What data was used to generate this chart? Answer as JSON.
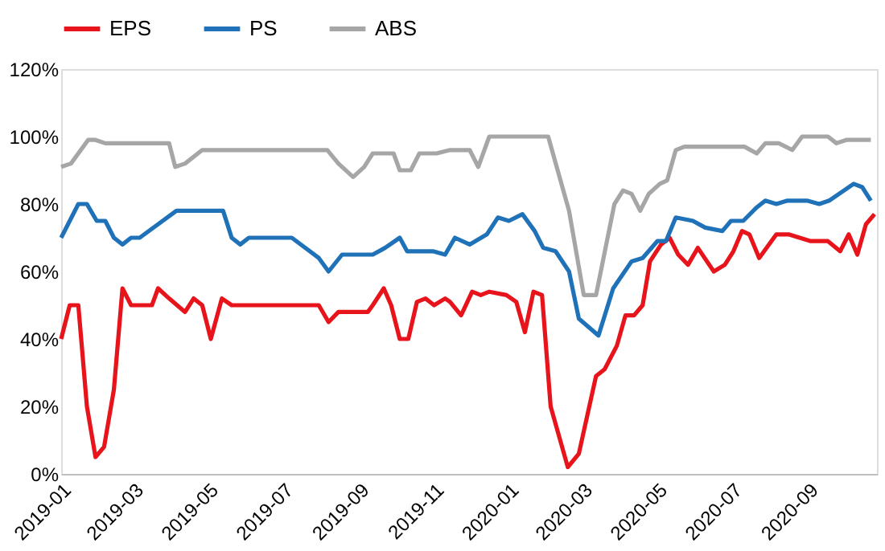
{
  "chart_data": {
    "type": "line",
    "legend": "top",
    "grid": false,
    "marker": "none",
    "line_style": "solid",
    "xlim": [
      "2019-01-01",
      "2020-10-27"
    ],
    "xticks": [
      "2019-01",
      "2019-03",
      "2019-05",
      "2019-07",
      "2019-09",
      "2019-11",
      "2020-01",
      "2020-03",
      "2020-05",
      "2020-07",
      "2020-09"
    ],
    "ylim": [
      0,
      120
    ],
    "yticks": [
      {
        "value": 0,
        "label": "0%"
      },
      {
        "value": 20,
        "label": "20%"
      },
      {
        "value": 40,
        "label": "40%"
      },
      {
        "value": 60,
        "label": "60%"
      },
      {
        "value": 80,
        "label": "80%"
      },
      {
        "value": 100,
        "label": "100%"
      },
      {
        "value": 120,
        "label": "120%"
      }
    ],
    "series": [
      {
        "name": "EPS",
        "color": "#e8141b",
        "x": [
          "2019-01-01",
          "2019-01-08",
          "2019-01-15",
          "2019-01-22",
          "2019-01-29",
          "2019-02-05",
          "2019-02-13",
          "2019-02-20",
          "2019-02-27",
          "2019-03-16",
          "2019-03-21",
          "2019-03-30",
          "2019-04-12",
          "2019-04-19",
          "2019-04-26",
          "2019-05-03",
          "2019-05-12",
          "2019-05-20",
          "2019-07-30",
          "2019-08-07",
          "2019-08-15",
          "2019-09-08",
          "2019-09-12",
          "2019-09-21",
          "2019-09-27",
          "2019-10-04",
          "2019-10-11",
          "2019-10-18",
          "2019-10-25",
          "2019-11-01",
          "2019-11-10",
          "2019-11-14",
          "2019-11-23",
          "2019-12-02",
          "2019-12-09",
          "2019-12-16",
          "2019-12-30",
          "2020-01-07",
          "2020-01-14",
          "2020-01-21",
          "2020-01-28",
          "2020-02-04",
          "2020-02-18",
          "2020-02-27",
          "2020-03-12",
          "2020-03-19",
          "2020-03-29",
          "2020-04-05",
          "2020-04-12",
          "2020-04-19",
          "2020-04-25",
          "2020-05-04",
          "2020-05-11",
          "2020-05-18",
          "2020-05-26",
          "2020-06-03",
          "2020-06-16",
          "2020-06-25",
          "2020-07-02",
          "2020-07-09",
          "2020-07-15",
          "2020-07-23",
          "2020-08-06",
          "2020-08-16",
          "2020-09-03",
          "2020-09-17",
          "2020-09-27",
          "2020-10-04",
          "2020-10-11",
          "2020-10-18",
          "2020-10-25"
        ],
        "values": [
          40,
          50,
          50,
          20,
          5,
          8,
          25,
          55,
          50,
          50,
          55,
          52,
          48,
          52,
          50,
          40,
          52,
          50,
          50,
          45,
          48,
          48,
          50,
          55,
          50,
          40,
          40,
          51,
          52,
          50,
          52,
          51,
          47,
          54,
          53,
          54,
          53,
          51,
          42,
          54,
          53,
          20,
          2,
          6,
          29,
          31,
          38,
          47,
          47,
          50,
          63,
          68,
          70,
          65,
          62,
          67,
          60,
          62,
          66,
          72,
          71,
          64,
          71,
          71,
          69,
          69,
          66,
          71,
          65,
          74,
          77
        ]
      },
      {
        "name": "PS",
        "color": "#1f72b8",
        "x": [
          "2019-01-01",
          "2019-01-15",
          "2019-01-22",
          "2019-01-30",
          "2019-02-06",
          "2019-02-13",
          "2019-02-20",
          "2019-02-27",
          "2019-03-06",
          "2019-04-05",
          "2019-05-13",
          "2019-05-20",
          "2019-05-27",
          "2019-06-03",
          "2019-07-08",
          "2019-07-30",
          "2019-08-07",
          "2019-08-18",
          "2019-09-12",
          "2019-09-22",
          "2019-10-04",
          "2019-10-10",
          "2019-10-31",
          "2019-11-10",
          "2019-11-18",
          "2019-11-30",
          "2019-12-14",
          "2019-12-23",
          "2020-01-01",
          "2020-01-12",
          "2020-01-22",
          "2020-01-29",
          "2020-02-08",
          "2020-02-19",
          "2020-02-27",
          "2020-03-14",
          "2020-03-26",
          "2020-04-10",
          "2020-04-19",
          "2020-05-01",
          "2020-05-08",
          "2020-05-16",
          "2020-05-30",
          "2020-06-09",
          "2020-06-23",
          "2020-06-30",
          "2020-07-10",
          "2020-07-21",
          "2020-07-28",
          "2020-08-06",
          "2020-08-15",
          "2020-08-31",
          "2020-09-10",
          "2020-09-18",
          "2020-10-08",
          "2020-10-15",
          "2020-10-22"
        ],
        "values": [
          70,
          80,
          80,
          75,
          75,
          70,
          68,
          70,
          70,
          78,
          78,
          70,
          68,
          70,
          70,
          64,
          60,
          65,
          65,
          67,
          70,
          66,
          66,
          65,
          70,
          68,
          71,
          76,
          75,
          77,
          72,
          67,
          66,
          60,
          46,
          41,
          55,
          63,
          64,
          69,
          69,
          76,
          75,
          73,
          72,
          75,
          75,
          79,
          81,
          80,
          81,
          81,
          80,
          81,
          86,
          85,
          81
        ]
      },
      {
        "name": "ABS",
        "color": "#a6a6a6",
        "x": [
          "2019-01-01",
          "2019-01-09",
          "2019-01-23",
          "2019-01-29",
          "2019-02-06",
          "2019-03-30",
          "2019-04-04",
          "2019-04-12",
          "2019-04-26",
          "2019-08-06",
          "2019-08-15",
          "2019-08-27",
          "2019-09-05",
          "2019-09-12",
          "2019-09-29",
          "2019-10-04",
          "2019-10-13",
          "2019-10-20",
          "2019-11-03",
          "2019-11-14",
          "2019-11-30",
          "2019-12-07",
          "2019-12-16",
          "2020-02-02",
          "2020-02-19",
          "2020-03-02",
          "2020-03-12",
          "2020-03-27",
          "2020-04-03",
          "2020-04-10",
          "2020-04-17",
          "2020-04-24",
          "2020-05-03",
          "2020-05-09",
          "2020-05-16",
          "2020-05-23",
          "2020-07-11",
          "2020-07-21",
          "2020-07-28",
          "2020-08-08",
          "2020-08-19",
          "2020-08-27",
          "2020-09-17",
          "2020-09-24",
          "2020-10-02",
          "2020-10-22"
        ],
        "values": [
          91,
          92,
          99,
          99,
          98,
          98,
          91,
          92,
          96,
          96,
          92,
          88,
          91,
          95,
          95,
          90,
          90,
          95,
          95,
          96,
          96,
          91,
          100,
          100,
          78,
          53,
          53,
          80,
          84,
          83,
          78,
          83,
          86,
          87,
          96,
          97,
          97,
          95,
          98,
          98,
          96,
          100,
          100,
          98,
          99,
          99
        ]
      }
    ]
  }
}
